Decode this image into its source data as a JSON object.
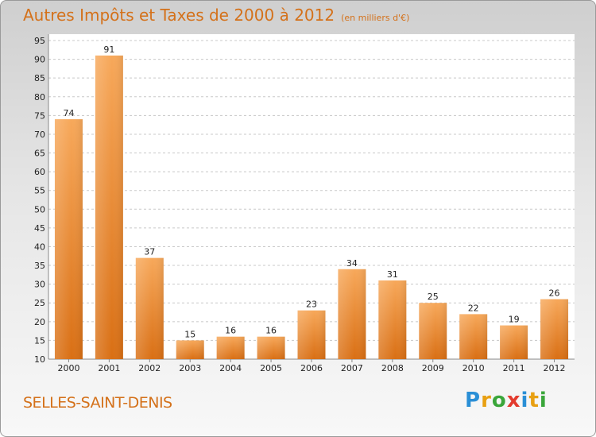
{
  "title": "Autres Impôts et Taxes de 2000 à 2012",
  "subtitle": "(en milliers d'€)",
  "location": "SELLES-SAINT-DENIS",
  "brand": "Proxiti",
  "colors": {
    "bar": "#f08a2c",
    "bar_light": "#f7a85a",
    "bar_dark": "#d96f14",
    "title": "#d4711a"
  },
  "chart_data": {
    "type": "bar",
    "title": "Autres Impôts et Taxes de 2000 à 2012",
    "subtitle": "(en milliers d'€)",
    "xlabel": "",
    "ylabel": "",
    "categories": [
      "2000",
      "2001",
      "2002",
      "2003",
      "2004",
      "2005",
      "2006",
      "2007",
      "2008",
      "2009",
      "2010",
      "2011",
      "2012"
    ],
    "values": [
      74,
      91,
      37,
      15,
      16,
      16,
      23,
      34,
      31,
      25,
      22,
      19,
      26
    ],
    "ylim": [
      10,
      95
    ],
    "yticks": [
      10,
      15,
      20,
      25,
      30,
      35,
      40,
      45,
      50,
      55,
      60,
      65,
      70,
      75,
      80,
      85,
      90,
      95
    ],
    "grid": "horizontal dashed",
    "data_labels": true
  }
}
